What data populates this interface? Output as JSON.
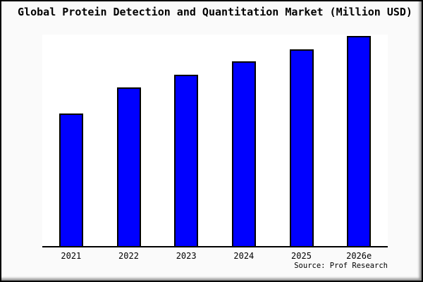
{
  "window": {
    "background_color": "#fafafa",
    "plot_background_color": "#ffffff",
    "border_color": "#000000"
  },
  "footer": {
    "source_label": "Source: Prof Research"
  },
  "chart_data": {
    "type": "bar",
    "title": "Global Protein Detection and Quantitation Market (Million USD)",
    "categories": [
      "2021",
      "2022",
      "2023",
      "2024",
      "2025",
      "2026e"
    ],
    "values": [
      63.0,
      75.4,
      81.6,
      88.0,
      93.7,
      100.0
    ],
    "values_note": "y-axis has no tick labels or gridlines; values estimated from bar heights as percent of tallest bar (2026e = 100)",
    "series_name": "Market size (Million USD)",
    "xlabel": "",
    "ylabel": "",
    "ylim": [
      0,
      100
    ],
    "grid": false,
    "legend": false,
    "bar_color": "#0000ff",
    "bar_border_color": "#000000"
  }
}
